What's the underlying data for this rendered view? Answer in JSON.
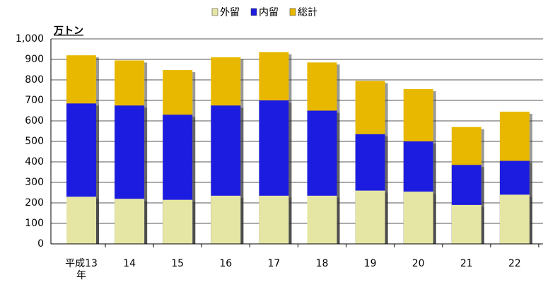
{
  "chart_data": {
    "type": "bar",
    "mode": "overlap",
    "y_label": "万トン",
    "categories": [
      "平成13年",
      "14",
      "15",
      "16",
      "17",
      "18",
      "19",
      "20",
      "21",
      "22"
    ],
    "series": [
      {
        "name": "外留",
        "color": "#e6e6a4",
        "values": [
          230,
          220,
          215,
          235,
          235,
          235,
          260,
          255,
          190,
          240
        ]
      },
      {
        "name": "内留",
        "color": "#1c1ce0",
        "values": [
          685,
          675,
          630,
          675,
          700,
          650,
          535,
          500,
          385,
          405
        ]
      },
      {
        "name": "総計",
        "color": "#e8b800",
        "values": [
          920,
          895,
          848,
          910,
          935,
          885,
          795,
          755,
          570,
          645
        ]
      }
    ],
    "ylim": [
      0,
      1000
    ],
    "yticks": [
      0,
      100,
      200,
      300,
      400,
      500,
      600,
      700,
      800,
      900,
      {
        "value": 1000,
        "label": "1,000"
      }
    ],
    "grid": true,
    "legend": "top"
  }
}
